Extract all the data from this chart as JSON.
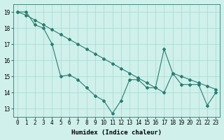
{
  "x": [
    0,
    1,
    2,
    3,
    4,
    5,
    6,
    7,
    8,
    9,
    10,
    11,
    12,
    13,
    14,
    15,
    16,
    17,
    18,
    19,
    20,
    21,
    22,
    23
  ],
  "y_jagged": [
    19,
    19,
    18.2,
    18,
    17,
    15,
    15.1,
    14.8,
    14.3,
    13.8,
    13.5,
    12.7,
    13.5,
    14.8,
    14.8,
    14.3,
    14.3,
    16.7,
    15.2,
    14.5,
    14.5,
    14.5,
    13.2,
    14
  ],
  "y_trend": [
    19,
    18.8,
    18.5,
    18.2,
    17.9,
    17.6,
    17.3,
    17.0,
    16.7,
    16.4,
    16.1,
    15.8,
    15.5,
    15.2,
    14.9,
    14.6,
    14.3,
    14.0,
    15.2,
    15.0,
    14.8,
    14.6,
    14.4,
    14.2
  ],
  "line_color": "#2a7d6e",
  "bg_color": "#cff0eb",
  "grid_color": "#a8d8d0",
  "xlabel": "Humidex (Indice chaleur)",
  "ylabel_ticks": [
    13,
    14,
    15,
    16,
    17,
    18,
    19
  ],
  "xlim": [
    -0.5,
    23.5
  ],
  "ylim": [
    12.5,
    19.5
  ],
  "xticks": [
    0,
    1,
    2,
    3,
    4,
    5,
    6,
    7,
    8,
    9,
    10,
    11,
    12,
    13,
    14,
    15,
    16,
    17,
    18,
    19,
    20,
    21,
    22,
    23
  ],
  "xlabel_fontsize": 6.5,
  "tick_fontsize": 5.5,
  "marker": "D",
  "markersize": 2.0,
  "linewidth": 0.8
}
